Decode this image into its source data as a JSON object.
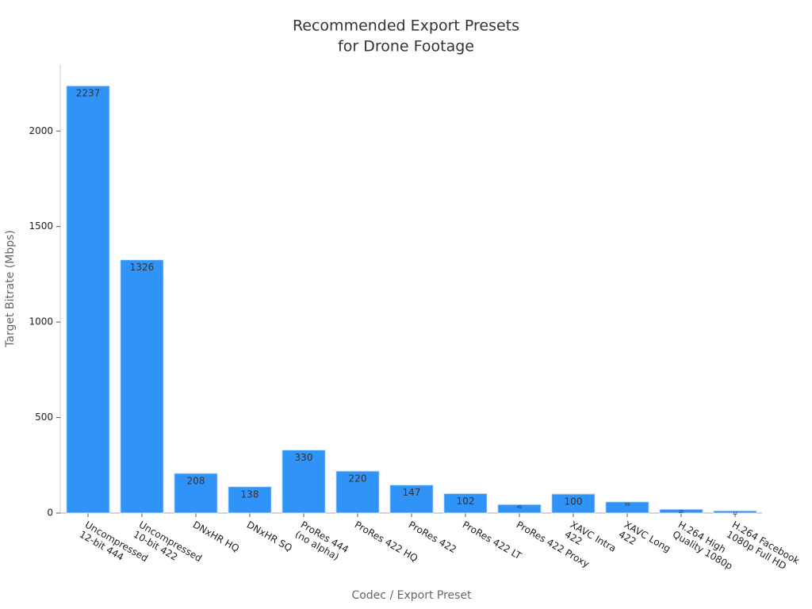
{
  "chart_data": {
    "type": "bar",
    "title": [
      "Recommended Export Presets",
      "for Drone Footage"
    ],
    "x_label": "Codec / Export Preset",
    "y_label": "Target Bitrate (Mbps)",
    "categories": [
      [
        "Uncompressed",
        "12-bit 444"
      ],
      [
        "Uncompressed",
        "10-bit 422"
      ],
      [
        "DNxHR HQ"
      ],
      [
        "DNxHR SQ"
      ],
      [
        "ProRes 444",
        "(no alpha)"
      ],
      [
        "ProRes 422 HQ"
      ],
      [
        "ProRes 422"
      ],
      [
        "ProRes 422 LT"
      ],
      [
        "ProRes 422 Proxy"
      ],
      [
        "XAVC Intra",
        "422"
      ],
      [
        "XAVC Long",
        "422"
      ],
      [
        "H.264 High",
        "Quality 1080p"
      ],
      [
        "H.264 Facebook",
        "1080p Full HD"
      ]
    ],
    "values": [
      2237,
      1326,
      208,
      138,
      330,
      220,
      147,
      102,
      45,
      100,
      59,
      20,
      12
    ],
    "color": "#2f93f7",
    "ylim": [
      0,
      2350
    ],
    "yticks": [
      0,
      500,
      1000,
      1500,
      2000
    ],
    "grid": false
  }
}
